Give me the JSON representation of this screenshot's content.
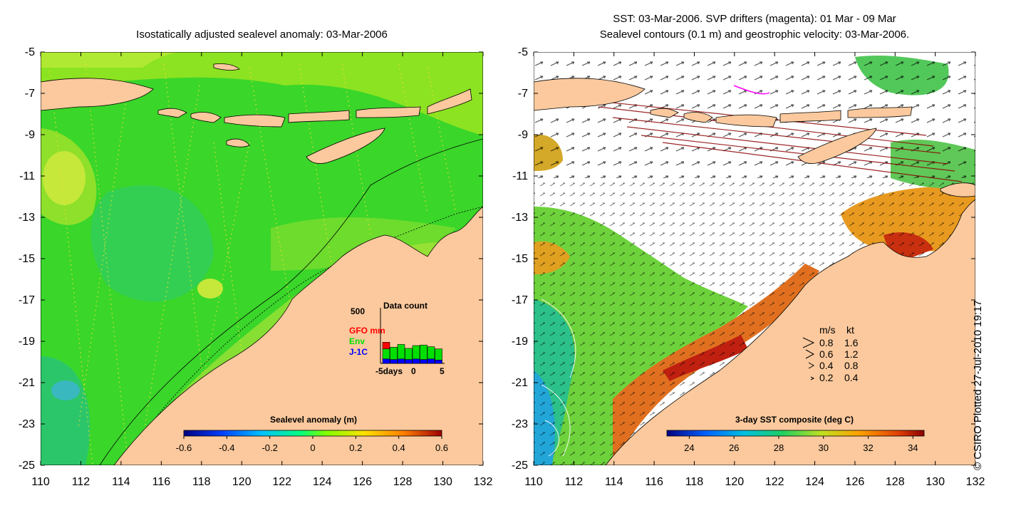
{
  "left_panel": {
    "title": "Isostatically adjusted sealevel anomaly: 03-Mar-2006",
    "colorbar": {
      "label": "Sealevel anomaly (m)",
      "ticks": [
        "-0.6",
        "-0.4",
        "-0.2",
        "0",
        "0.2",
        "0.4",
        "0.6"
      ],
      "range": [
        -0.6,
        0.6
      ]
    },
    "inset": {
      "title": "Data count",
      "ymax_label": "500",
      "legend": [
        "GFO mm",
        "Env",
        "J-1C"
      ],
      "legend_colors": [
        "#ff0000",
        "#00e000",
        "#0000ff"
      ],
      "xticks": [
        "-5days",
        "0",
        "5"
      ],
      "counts": [
        {
          "gfo": 60,
          "env": 90,
          "j1c": 40
        },
        {
          "gfo": 0,
          "env": 110,
          "j1c": 35
        },
        {
          "gfo": 0,
          "env": 130,
          "j1c": 40
        },
        {
          "gfo": 0,
          "env": 100,
          "j1c": 35
        },
        {
          "gfo": 0,
          "env": 120,
          "j1c": 40
        },
        {
          "gfo": 0,
          "env": 130,
          "j1c": 35
        },
        {
          "gfo": 0,
          "env": 110,
          "j1c": 40
        },
        {
          "gfo": 0,
          "env": 100,
          "j1c": 30
        }
      ]
    }
  },
  "right_panel": {
    "title_line1": "SST: 03-Mar-2006. SVP drifters (magenta): 01 Mar - 09 Mar",
    "title_line2": "Sealevel contours (0.1 m) and geostrophic velocity: 03-Mar-2006.",
    "colorbar": {
      "label": "3-day SST composite (deg C)",
      "ticks": [
        "24",
        "26",
        "28",
        "30",
        "32",
        "34"
      ],
      "range": [
        23,
        34.5
      ]
    },
    "velocity_legend": {
      "header_ms": "m/s",
      "header_kt": "kt",
      "rows": [
        {
          "ms": "0.8",
          "kt": "1.6"
        },
        {
          "ms": "0.6",
          "kt": "1.2"
        },
        {
          "ms": "0.4",
          "kt": "0.8"
        },
        {
          "ms": "0.2",
          "kt": "0.4"
        }
      ]
    }
  },
  "axes": {
    "x_ticks": [
      "110",
      "112",
      "114",
      "116",
      "118",
      "120",
      "122",
      "124",
      "126",
      "128",
      "130",
      "132"
    ],
    "y_ticks": [
      "-5",
      "-7",
      "-9",
      "-11",
      "-13",
      "-15",
      "-17",
      "-19",
      "-21",
      "-23",
      "-25"
    ],
    "lon_range": [
      110,
      132
    ],
    "lat_range": [
      -25,
      -5
    ]
  },
  "credit": "© CSIRO Plotted 27-Jul-2010 19:17",
  "colors": {
    "land": "#fbc99d",
    "sla_field": "#33dd22",
    "sst_cloud": "#ffffff"
  }
}
